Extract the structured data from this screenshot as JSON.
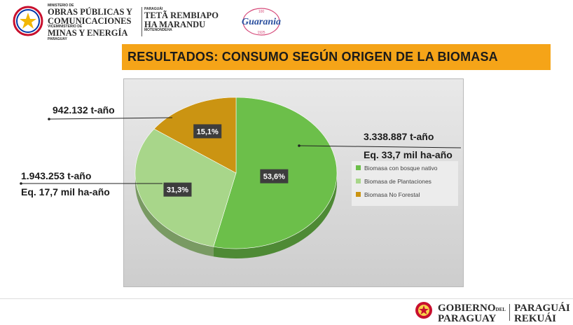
{
  "header": {
    "ministry_small_1": "MINISTERIO DE",
    "ministry_big_1": "OBRAS PÚBLICAS Y",
    "ministry_big_2": "COMUNICACIONES",
    "ministry_small_2": "VICEMINISTERIO DE",
    "ministry_big_3": "MINAS Y ENERGÍA",
    "ministry_small_3": "PARAGUAY",
    "guarani_small_1": "PARAGUÁI",
    "guarani_big_1": "TETÃ REMBIAPO",
    "guarani_big_2": "HA MARANDU",
    "guarani_small_2": "MOTENONDEHA",
    "guarania_logo": "Guarania",
    "guarania_top": "100",
    "guarania_year": "1925"
  },
  "title": "RESULTADOS: CONSUMO SEGÚN ORIGEN DE LA BIOMASA",
  "chart_data": {
    "type": "pie",
    "slices": [
      {
        "label": "Biomasa con bosque nativo",
        "value": 53.6,
        "data_label": "53,6%",
        "color": "#6cbf4a"
      },
      {
        "label": "Biomasa de Plantaciones",
        "value": 31.3,
        "data_label": "31,3%",
        "color": "#a8d68a"
      },
      {
        "label": "Biomasa No Forestal",
        "value": 15.1,
        "data_label": "15,1%",
        "color": "#cb9412"
      }
    ],
    "legend_position": "right",
    "annotations": {
      "native_1": "3.338.887 t-año",
      "native_2": "Eq. 33,7 mil ha-año",
      "plantations_1": "1.943.253 t-año",
      "plantations_2": "Eq. 17,7 mil ha-año",
      "nonforest_1": "942.132 t-año"
    }
  },
  "footer": {
    "gobierno_1": "GOBIERNO",
    "gobierno_del": "DEL",
    "gobierno_2": "PARAGUAY",
    "rekuai_1": "PARAGUÁI",
    "rekuai_2": "REKUÁI"
  }
}
